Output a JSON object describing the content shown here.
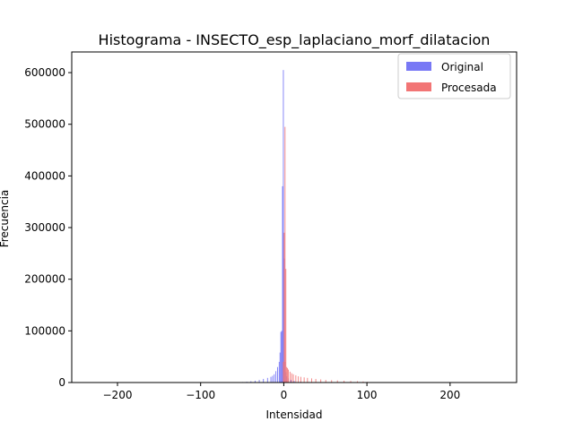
{
  "chart_data": {
    "type": "histogram",
    "title": "Histograma - INSECTO_esp_laplaciano_morf_dilatacion",
    "xlabel": "Intensidad",
    "ylabel": "Frecuencia",
    "xlim": [
      -255,
      280
    ],
    "ylim": [
      0,
      640000
    ],
    "x_ticks": [
      -200,
      -100,
      0,
      100,
      200
    ],
    "y_ticks": [
      0,
      100000,
      200000,
      300000,
      400000,
      500000,
      600000
    ],
    "x_tick_labels": [
      "−200",
      "−100",
      "0",
      "100",
      "200"
    ],
    "y_tick_labels": [
      "0",
      "100000",
      "200000",
      "300000",
      "400000",
      "500000",
      "600000"
    ],
    "legend": {
      "placement": "top-right",
      "entries": [
        "Original",
        "Procesada"
      ]
    },
    "series": [
      {
        "name": "Original",
        "color": "#7878f5",
        "bins": [
          [
            -50,
            1000
          ],
          [
            -45,
            1500
          ],
          [
            -40,
            2500
          ],
          [
            -35,
            3500
          ],
          [
            -30,
            5000
          ],
          [
            -25,
            7000
          ],
          [
            -20,
            9000
          ],
          [
            -16,
            11000
          ],
          [
            -14,
            13000
          ],
          [
            -12,
            16000
          ],
          [
            -10,
            22000
          ],
          [
            -8,
            30000
          ],
          [
            -6,
            40000
          ],
          [
            -5,
            58000
          ],
          [
            -4,
            98000
          ],
          [
            -3,
            100000
          ],
          [
            -2,
            380000
          ],
          [
            -1,
            605000
          ],
          [
            0,
            240000
          ],
          [
            1,
            40000
          ],
          [
            2,
            20000
          ],
          [
            3,
            12000
          ],
          [
            5,
            8000
          ],
          [
            8,
            5000
          ],
          [
            12,
            3000
          ],
          [
            20,
            2000
          ],
          [
            30,
            1000
          ],
          [
            45,
            500
          ],
          [
            70,
            200
          ]
        ]
      },
      {
        "name": "Procesada",
        "color": "#f27575",
        "bins": [
          [
            -1,
            40000
          ],
          [
            0,
            290000
          ],
          [
            1,
            495000
          ],
          [
            2,
            220000
          ],
          [
            3,
            30000
          ],
          [
            4,
            28000
          ],
          [
            5,
            25000
          ],
          [
            7,
            21000
          ],
          [
            9,
            18000
          ],
          [
            11,
            16000
          ],
          [
            14,
            14000
          ],
          [
            17,
            12000
          ],
          [
            20,
            11000
          ],
          [
            24,
            10000
          ],
          [
            28,
            9000
          ],
          [
            33,
            8000
          ],
          [
            38,
            7000
          ],
          [
            44,
            6000
          ],
          [
            50,
            5000
          ],
          [
            57,
            4500
          ],
          [
            64,
            4000
          ],
          [
            72,
            3500
          ],
          [
            80,
            3000
          ],
          [
            88,
            2500
          ],
          [
            95,
            2000
          ],
          [
            100,
            1200
          ],
          [
            104,
            500
          ]
        ]
      }
    ]
  }
}
